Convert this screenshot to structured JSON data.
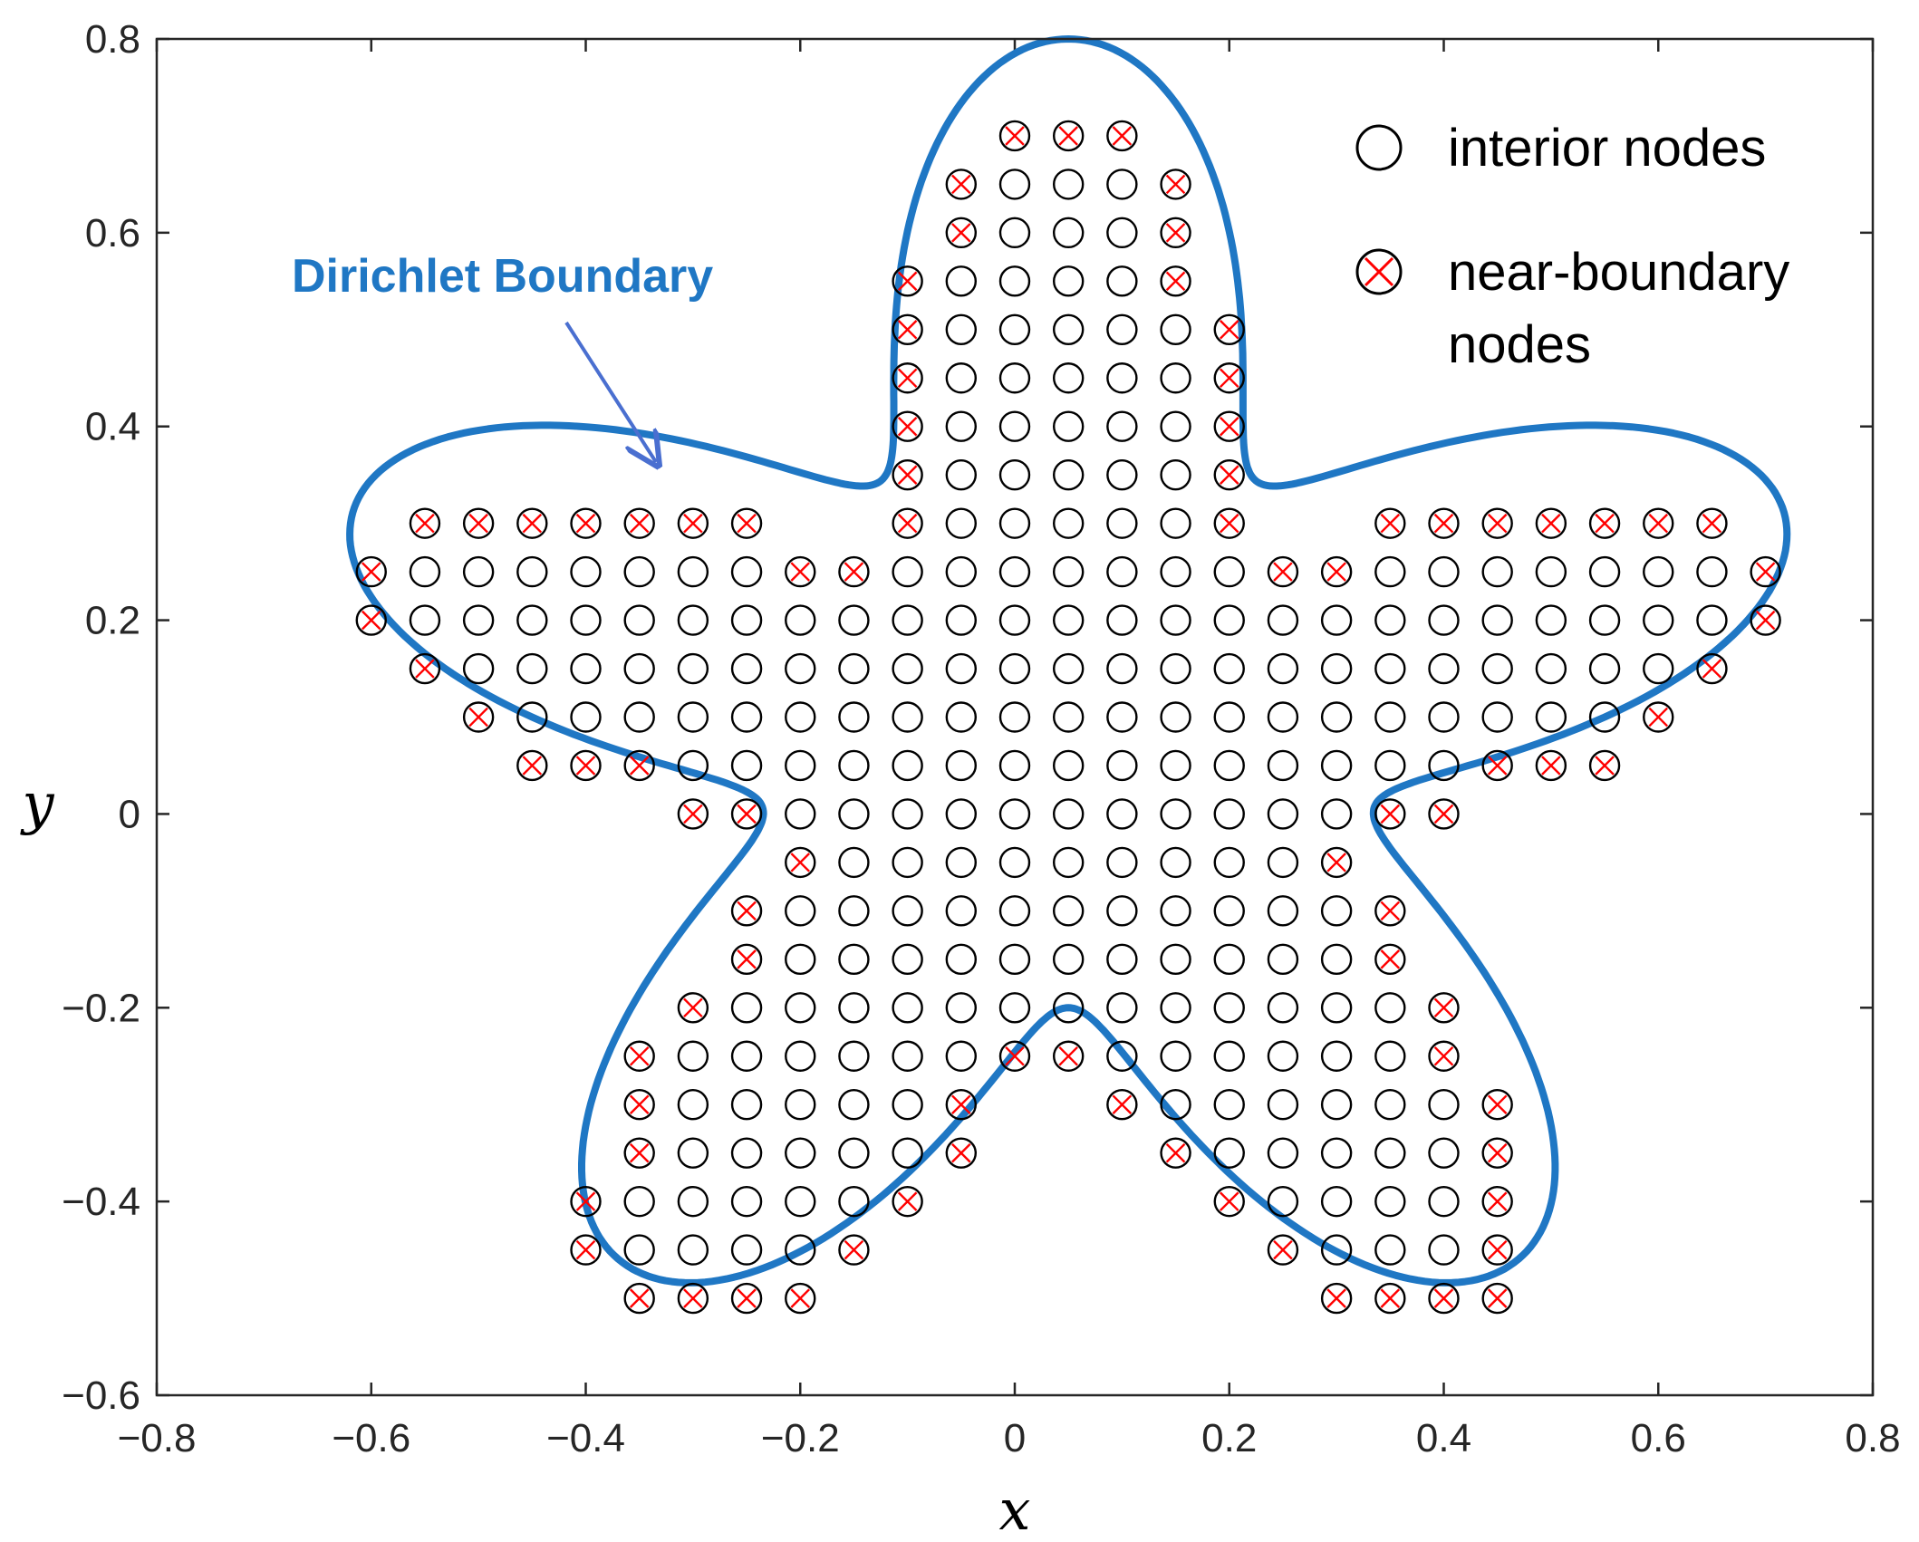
{
  "chart_data": {
    "type": "scatter",
    "xlabel": "x",
    "ylabel": "y",
    "xlim": [
      -0.8,
      0.8
    ],
    "ylim": [
      -0.6,
      0.8
    ],
    "xticks": [
      -0.8,
      -0.6,
      -0.4,
      -0.2,
      0,
      0.2,
      0.4,
      0.6,
      0.8
    ],
    "yticks": [
      -0.6,
      -0.4,
      -0.2,
      0,
      0.2,
      0.4,
      0.6,
      0.8
    ],
    "xtick_labels": [
      "−0.8",
      "−0.6",
      "−0.4",
      "−0.2",
      "0",
      "0.2",
      "0.4",
      "0.6",
      "0.8"
    ],
    "ytick_labels": [
      "−0.6",
      "−0.4",
      "−0.2",
      "0",
      "0.2",
      "0.4",
      "0.6",
      "0.8"
    ],
    "grid": false,
    "legend_position": "top-right",
    "boundary": {
      "name": "Dirichlet Boundary",
      "color": "#1f77c4",
      "shape": "five-armed star, r(t) = 0.5 + 0.2*sin(5t) about center (0.05, 0.1)"
    },
    "annotation": {
      "text": "Dirichlet Boundary",
      "color": "#1f77c4",
      "arrow_color": "#4a6fd0"
    },
    "grid_spacing": 0.05,
    "series": [
      {
        "name": "interior nodes",
        "marker": "circle",
        "color": "#000000"
      },
      {
        "name": "near-boundary nodes",
        "marker": "circle-x",
        "color": "#ff0000",
        "legend_lines": [
          "near-boundary",
          "nodes"
        ]
      }
    ],
    "near_boundary_nodes": [
      [
        0,
        0.7
      ],
      [
        0.05,
        0.7
      ],
      [
        0.1,
        0.7
      ],
      [
        -0.05,
        0.65
      ],
      [
        0.15,
        0.65
      ],
      [
        -0.05,
        0.6
      ],
      [
        0.15,
        0.6
      ],
      [
        -0.1,
        0.55
      ],
      [
        0.15,
        0.55
      ],
      [
        -0.1,
        0.5
      ],
      [
        0.2,
        0.5
      ],
      [
        -0.1,
        0.45
      ],
      [
        0.2,
        0.45
      ],
      [
        -0.1,
        0.4
      ],
      [
        0.2,
        0.4
      ],
      [
        -0.1,
        0.35
      ],
      [
        0.2,
        0.35
      ],
      [
        -0.55,
        0.3
      ],
      [
        -0.5,
        0.3
      ],
      [
        -0.45,
        0.3
      ],
      [
        -0.4,
        0.3
      ],
      [
        -0.35,
        0.3
      ],
      [
        -0.3,
        0.3
      ],
      [
        -0.25,
        0.3
      ],
      [
        -0.1,
        0.3
      ],
      [
        0.2,
        0.3
      ],
      [
        0.35,
        0.3
      ],
      [
        0.4,
        0.3
      ],
      [
        0.45,
        0.3
      ],
      [
        0.5,
        0.3
      ],
      [
        0.55,
        0.3
      ],
      [
        0.6,
        0.3
      ],
      [
        0.65,
        0.3
      ],
      [
        -0.6,
        0.25
      ],
      [
        -0.2,
        0.25
      ],
      [
        -0.15,
        0.25
      ],
      [
        0.25,
        0.25
      ],
      [
        0.3,
        0.25
      ],
      [
        0.7,
        0.25
      ],
      [
        -0.6,
        0.2
      ],
      [
        0.7,
        0.2
      ],
      [
        -0.55,
        0.15
      ],
      [
        0.65,
        0.15
      ],
      [
        -0.5,
        0.1
      ],
      [
        0.6,
        0.1
      ],
      [
        -0.45,
        0.05
      ],
      [
        -0.4,
        0.05
      ],
      [
        -0.35,
        0.05
      ],
      [
        0.45,
        0.05
      ],
      [
        0.5,
        0.05
      ],
      [
        0.55,
        0.05
      ],
      [
        -0.3,
        0
      ],
      [
        -0.25,
        0
      ],
      [
        0.35,
        0
      ],
      [
        0.4,
        0
      ],
      [
        -0.2,
        -0.05
      ],
      [
        0.3,
        -0.05
      ],
      [
        -0.25,
        -0.1
      ],
      [
        0.35,
        -0.1
      ],
      [
        -0.25,
        -0.15
      ],
      [
        0.35,
        -0.15
      ],
      [
        -0.3,
        -0.2
      ],
      [
        0.4,
        -0.2
      ],
      [
        -0.35,
        -0.25
      ],
      [
        0,
        -0.25
      ],
      [
        0.05,
        -0.25
      ],
      [
        0.4,
        -0.25
      ],
      [
        -0.35,
        -0.3
      ],
      [
        -0.05,
        -0.3
      ],
      [
        0.1,
        -0.3
      ],
      [
        0.45,
        -0.3
      ],
      [
        -0.35,
        -0.35
      ],
      [
        -0.05,
        -0.35
      ],
      [
        0.15,
        -0.35
      ],
      [
        0.45,
        -0.35
      ],
      [
        -0.4,
        -0.4
      ],
      [
        -0.1,
        -0.4
      ],
      [
        0.2,
        -0.4
      ],
      [
        0.45,
        -0.4
      ],
      [
        -0.4,
        -0.45
      ],
      [
        -0.15,
        -0.45
      ],
      [
        0.25,
        -0.45
      ],
      [
        0.45,
        -0.45
      ],
      [
        -0.35,
        -0.5
      ],
      [
        -0.3,
        -0.5
      ],
      [
        -0.25,
        -0.5
      ],
      [
        -0.2,
        -0.5
      ],
      [
        0.3,
        -0.5
      ],
      [
        0.35,
        -0.5
      ],
      [
        0.4,
        -0.5
      ],
      [
        0.45,
        -0.5
      ]
    ],
    "interior_rows": [
      {
        "y": 0.65,
        "x": [
          0,
          0.05,
          0.1
        ]
      },
      {
        "y": 0.6,
        "x": [
          0,
          0.05,
          0.1
        ]
      },
      {
        "y": 0.55,
        "x": [
          -0.05,
          0,
          0.05,
          0.1
        ]
      },
      {
        "y": 0.5,
        "x": [
          -0.05,
          0,
          0.05,
          0.1,
          0.15
        ]
      },
      {
        "y": 0.45,
        "x": [
          -0.05,
          0,
          0.05,
          0.1,
          0.15
        ]
      },
      {
        "y": 0.4,
        "x": [
          -0.05,
          0,
          0.05,
          0.1,
          0.15
        ]
      },
      {
        "y": 0.35,
        "x": [
          -0.05,
          0,
          0.05,
          0.1,
          0.15
        ]
      },
      {
        "y": 0.3,
        "x": [
          -0.05,
          0,
          0.05,
          0.1,
          0.15
        ]
      },
      {
        "y": 0.25,
        "x": [
          -0.55,
          -0.5,
          -0.45,
          -0.4,
          -0.35,
          -0.3,
          -0.25,
          -0.1,
          -0.05,
          0,
          0.05,
          0.1,
          0.15,
          0.2,
          0.35,
          0.4,
          0.45,
          0.5,
          0.55,
          0.6,
          0.65
        ]
      },
      {
        "y": 0.2,
        "x": [
          -0.55,
          -0.5,
          -0.45,
          -0.4,
          -0.35,
          -0.3,
          -0.25,
          -0.2,
          -0.15,
          -0.1,
          -0.05,
          0,
          0.05,
          0.1,
          0.15,
          0.2,
          0.25,
          0.3,
          0.35,
          0.4,
          0.45,
          0.5,
          0.55,
          0.6,
          0.65
        ]
      },
      {
        "y": 0.15,
        "x": [
          -0.5,
          -0.45,
          -0.4,
          -0.35,
          -0.3,
          -0.25,
          -0.2,
          -0.15,
          -0.1,
          -0.05,
          0,
          0.05,
          0.1,
          0.15,
          0.2,
          0.25,
          0.3,
          0.35,
          0.4,
          0.45,
          0.5,
          0.55,
          0.6
        ]
      },
      {
        "y": 0.1,
        "x": [
          -0.45,
          -0.4,
          -0.35,
          -0.3,
          -0.25,
          -0.2,
          -0.15,
          -0.1,
          -0.05,
          0,
          0.05,
          0.1,
          0.15,
          0.2,
          0.25,
          0.3,
          0.35,
          0.4,
          0.45,
          0.5,
          0.55
        ]
      },
      {
        "y": 0.05,
        "x": [
          -0.3,
          -0.25,
          -0.2,
          -0.15,
          -0.1,
          -0.05,
          0,
          0.05,
          0.1,
          0.15,
          0.2,
          0.25,
          0.3,
          0.35,
          0.4
        ]
      },
      {
        "y": 0,
        "x": [
          -0.2,
          -0.15,
          -0.1,
          -0.05,
          0,
          0.05,
          0.1,
          0.15,
          0.2,
          0.25,
          0.3
        ]
      },
      {
        "y": -0.05,
        "x": [
          -0.15,
          -0.1,
          -0.05,
          0,
          0.05,
          0.1,
          0.15,
          0.2,
          0.25
        ]
      },
      {
        "y": -0.1,
        "x": [
          -0.2,
          -0.15,
          -0.1,
          -0.05,
          0,
          0.05,
          0.1,
          0.15,
          0.2,
          0.25,
          0.3
        ]
      },
      {
        "y": -0.15,
        "x": [
          -0.2,
          -0.15,
          -0.1,
          -0.05,
          0,
          0.05,
          0.1,
          0.15,
          0.2,
          0.25,
          0.3
        ]
      },
      {
        "y": -0.2,
        "x": [
          -0.25,
          -0.2,
          -0.15,
          -0.1,
          -0.05,
          0,
          0.05,
          0.1,
          0.15,
          0.2,
          0.25,
          0.3,
          0.35
        ]
      },
      {
        "y": -0.25,
        "x": [
          -0.3,
          -0.25,
          -0.2,
          -0.15,
          -0.1,
          -0.05,
          0.1,
          0.15,
          0.2,
          0.25,
          0.3,
          0.35
        ]
      },
      {
        "y": -0.3,
        "x": [
          -0.3,
          -0.25,
          -0.2,
          -0.15,
          -0.1,
          0.15,
          0.2,
          0.25,
          0.3,
          0.35,
          0.4
        ]
      },
      {
        "y": -0.35,
        "x": [
          -0.3,
          -0.25,
          -0.2,
          -0.15,
          -0.1,
          0.2,
          0.25,
          0.3,
          0.35,
          0.4
        ]
      },
      {
        "y": -0.4,
        "x": [
          -0.35,
          -0.3,
          -0.25,
          -0.2,
          -0.15,
          0.25,
          0.3,
          0.35,
          0.4
        ]
      },
      {
        "y": -0.45,
        "x": [
          -0.35,
          -0.3,
          -0.25,
          -0.2,
          0.3,
          0.35,
          0.4
        ]
      }
    ]
  }
}
